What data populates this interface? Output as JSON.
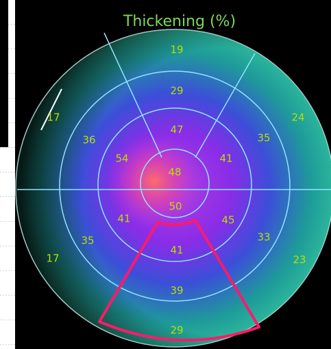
{
  "title": "Thickening (%)",
  "segments": [
    "19",
    "29",
    "47",
    "48",
    "50",
    "41",
    "39",
    "29",
    "17",
    "36",
    "54",
    "41",
    "35",
    "17",
    "24",
    "35",
    "41",
    "45",
    "33",
    "23"
  ]
}
